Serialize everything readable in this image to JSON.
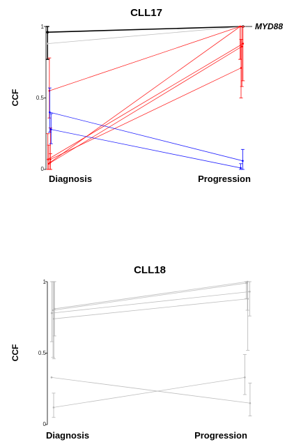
{
  "chart_data": [
    {
      "type": "line",
      "title": "CLL17",
      "ylabel": "CCF",
      "xlabel": "",
      "categories": [
        "Diagnosis",
        "Progression"
      ],
      "ylim": [
        0,
        1
      ],
      "yticks": [
        "0",
        "0.5",
        "1"
      ],
      "annotation": "MYD88",
      "grid": false,
      "series": [
        {
          "color": "#000000",
          "values": [
            0.96,
            1.0
          ],
          "err_diag": [
            0.77,
            1.0
          ],
          "err_prog": [
            1.0,
            1.0
          ],
          "x_jitter": [
            0.01,
            0.97
          ]
        },
        {
          "color": "#b3b3b3",
          "values": [
            0.88,
            1.0
          ],
          "err_diag": null,
          "err_prog": null,
          "x_jitter": [
            0.01,
            0.97
          ]
        },
        {
          "color": "#ff0000",
          "values": [
            0.55,
            1.0
          ],
          "err_diag": [
            0.36,
            0.78
          ],
          "err_prog": [
            0.77,
            1.0
          ],
          "x_jitter": [
            0.12,
            0.87
          ]
        },
        {
          "color": "#ff0000",
          "values": [
            0.05,
            1.0
          ],
          "err_diag": [
            0.0,
            0.11
          ],
          "err_prog": [
            0.77,
            1.0
          ],
          "x_jitter": [
            0.18,
            0.87
          ]
        },
        {
          "color": "#ff0000",
          "values": [
            0.07,
            0.88
          ],
          "err_diag": [
            0.0,
            0.25
          ],
          "err_prog": [
            0.62,
            1.0
          ],
          "x_jitter": [
            0.03,
            0.97
          ]
        },
        {
          "color": "#ff0000",
          "values": [
            0.04,
            0.86
          ],
          "err_diag": [
            0.0,
            0.17
          ],
          "err_prog": [
            0.58,
            1.0
          ],
          "x_jitter": [
            0.09,
            0.93
          ]
        },
        {
          "color": "#ff0000",
          "values": [
            0.07,
            0.71
          ],
          "err_diag": [
            0.0,
            0.29
          ],
          "err_prog": [
            0.5,
            0.91
          ],
          "x_jitter": [
            0.18,
            0.9
          ]
        },
        {
          "color": "#0000ff",
          "values": [
            0.4,
            0.06
          ],
          "err_diag": [
            0.26,
            0.57
          ],
          "err_prog": [
            0.0,
            0.14
          ],
          "x_jitter": [
            0.14,
            0.96
          ]
        },
        {
          "color": "#0000ff",
          "values": [
            0.28,
            0.01
          ],
          "err_diag": [
            0.18,
            0.39
          ],
          "err_prog": [
            0.0,
            0.04
          ],
          "x_jitter": [
            0.22,
            0.89
          ]
        }
      ]
    },
    {
      "type": "line",
      "title": "CLL18",
      "ylabel": "CCF",
      "xlabel": "",
      "categories": [
        "Diagnosis",
        "Progression"
      ],
      "ylim": [
        0,
        1
      ],
      "yticks": [
        "0",
        "0.5",
        "1"
      ],
      "grid": false,
      "series": [
        {
          "color": "#b3b3b3",
          "values": [
            0.78,
            0.93
          ],
          "err_diag": [
            0.58,
            1.0
          ],
          "err_prog": [
            0.76,
            1.0
          ],
          "x_jitter": [
            0.01,
            0.97
          ]
        },
        {
          "color": "#b3b3b3",
          "values": [
            0.8,
            0.99
          ],
          "err_diag": [
            0.47,
            1.0
          ],
          "err_prog": [
            0.88,
            1.0
          ],
          "x_jitter": [
            0.07,
            0.88
          ]
        },
        {
          "color": "#b3b3b3",
          "values": [
            0.74,
            0.88
          ],
          "err_diag": [
            0.46,
            1.0
          ],
          "err_prog": [
            0.52,
            1.0
          ],
          "x_jitter": [
            0.11,
            0.92
          ]
        },
        {
          "color": "#b3b3b3",
          "values": [
            0.81,
            1.0
          ],
          "err_diag": [
            0.62,
            1.0
          ],
          "err_prog": [
            0.8,
            1.0
          ],
          "x_jitter": [
            0.14,
            0.91
          ]
        },
        {
          "color": "#b3b3b3",
          "values": [
            0.33,
            0.15
          ],
          "err_diag": null,
          "err_prog": [
            0.06,
            0.29
          ],
          "x_jitter": [
            0.0,
            0.98
          ]
        },
        {
          "color": "#b3b3b3",
          "values": [
            0.12,
            0.33
          ],
          "err_diag": [
            0.05,
            0.22
          ],
          "err_prog": [
            0.21,
            0.49
          ],
          "x_jitter": [
            0.1,
            0.84
          ]
        }
      ]
    }
  ]
}
